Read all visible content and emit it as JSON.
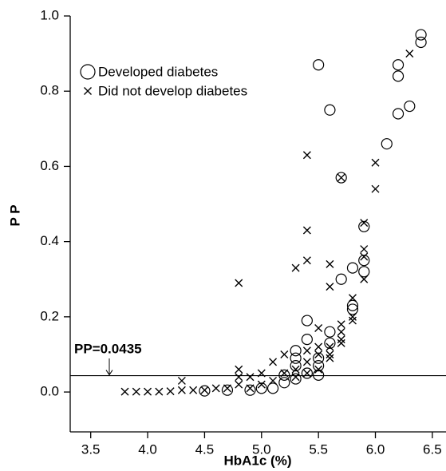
{
  "chart_data": {
    "type": "scatter",
    "x_label": "HbA1c (%)",
    "y_label": "P P",
    "xlim": [
      3.32,
      6.62
    ],
    "ylim": [
      -0.106,
      1.0
    ],
    "xticks": [
      3.5,
      {
        "value": 4,
        "label": "4.0"
      },
      4.5,
      {
        "value": 5,
        "label": "5.0"
      },
      5.5,
      {
        "value": 6,
        "label": "6.0"
      },
      6.5
    ],
    "yticks": [
      {
        "value": 0,
        "label": "0.0"
      },
      0.2,
      0.4,
      0.6,
      0.8,
      {
        "value": 1,
        "label": "1.0"
      }
    ],
    "legend": "upper-left",
    "hline": {
      "value": 0.0435,
      "label": "PP=0.0435",
      "color": "#000000"
    },
    "series": [
      {
        "name": "Developed diabetes",
        "marker": "circle",
        "color": "#000000",
        "x": [
          6.4,
          6.4,
          6.2,
          6.2,
          6.3,
          6.2,
          6.1,
          5.7,
          5.6,
          5.5,
          5.9,
          5.9,
          5.9,
          5.8,
          5.7,
          5.8,
          5.8,
          5.4,
          5.4,
          5.6,
          5.6,
          5.3,
          5.3,
          5.3,
          5.2,
          5.4,
          5.5,
          5.5,
          5.5,
          5.1,
          4.9,
          4.7,
          4.5,
          5.0,
          5.2,
          5.3
        ],
        "values": [
          0.95,
          0.93,
          0.87,
          0.84,
          0.76,
          0.74,
          0.66,
          0.57,
          0.75,
          0.87,
          0.44,
          0.35,
          0.32,
          0.33,
          0.3,
          0.23,
          0.22,
          0.19,
          0.14,
          0.16,
          0.13,
          0.11,
          0.09,
          0.07,
          0.045,
          0.05,
          0.09,
          0.07,
          0.045,
          0.01,
          0.005,
          0.005,
          0.003,
          0.01,
          0.025,
          0.035
        ]
      },
      {
        "name": "Did not develop diabetes",
        "marker": "cross",
        "color": "#000000",
        "x": [
          6.3,
          6.0,
          6.0,
          5.7,
          5.4,
          5.4,
          5.4,
          5.3,
          5.6,
          5.6,
          5.9,
          5.9,
          5.9,
          5.9,
          5.8,
          5.8,
          5.8,
          5.7,
          5.7,
          5.7,
          5.7,
          5.6,
          5.6,
          5.6,
          4.8,
          5.5,
          5.5,
          5.5,
          5.5,
          5.4,
          5.4,
          5.4,
          5.3,
          5.3,
          5.2,
          5.2,
          5.1,
          5.1,
          5.0,
          5.0,
          4.9,
          4.9,
          4.8,
          4.8,
          4.8,
          4.7,
          4.6,
          4.5,
          4.4,
          4.3,
          4.3,
          4.2,
          4.1,
          4.0,
          3.9,
          3.8
        ],
        "values": [
          0.9,
          0.61,
          0.54,
          0.57,
          0.63,
          0.43,
          0.35,
          0.33,
          0.34,
          0.28,
          0.45,
          0.38,
          0.36,
          0.3,
          0.25,
          0.2,
          0.19,
          0.18,
          0.16,
          0.14,
          0.13,
          0.12,
          0.1,
          0.09,
          0.29,
          0.17,
          0.12,
          0.1,
          0.06,
          0.11,
          0.08,
          0.05,
          0.06,
          0.04,
          0.1,
          0.05,
          0.08,
          0.03,
          0.05,
          0.02,
          0.04,
          0.01,
          0.06,
          0.04,
          0.02,
          0.01,
          0.01,
          0.005,
          0.005,
          0.03,
          0.005,
          0.002,
          0.001,
          0.001,
          0.001,
          0.001
        ]
      }
    ]
  }
}
